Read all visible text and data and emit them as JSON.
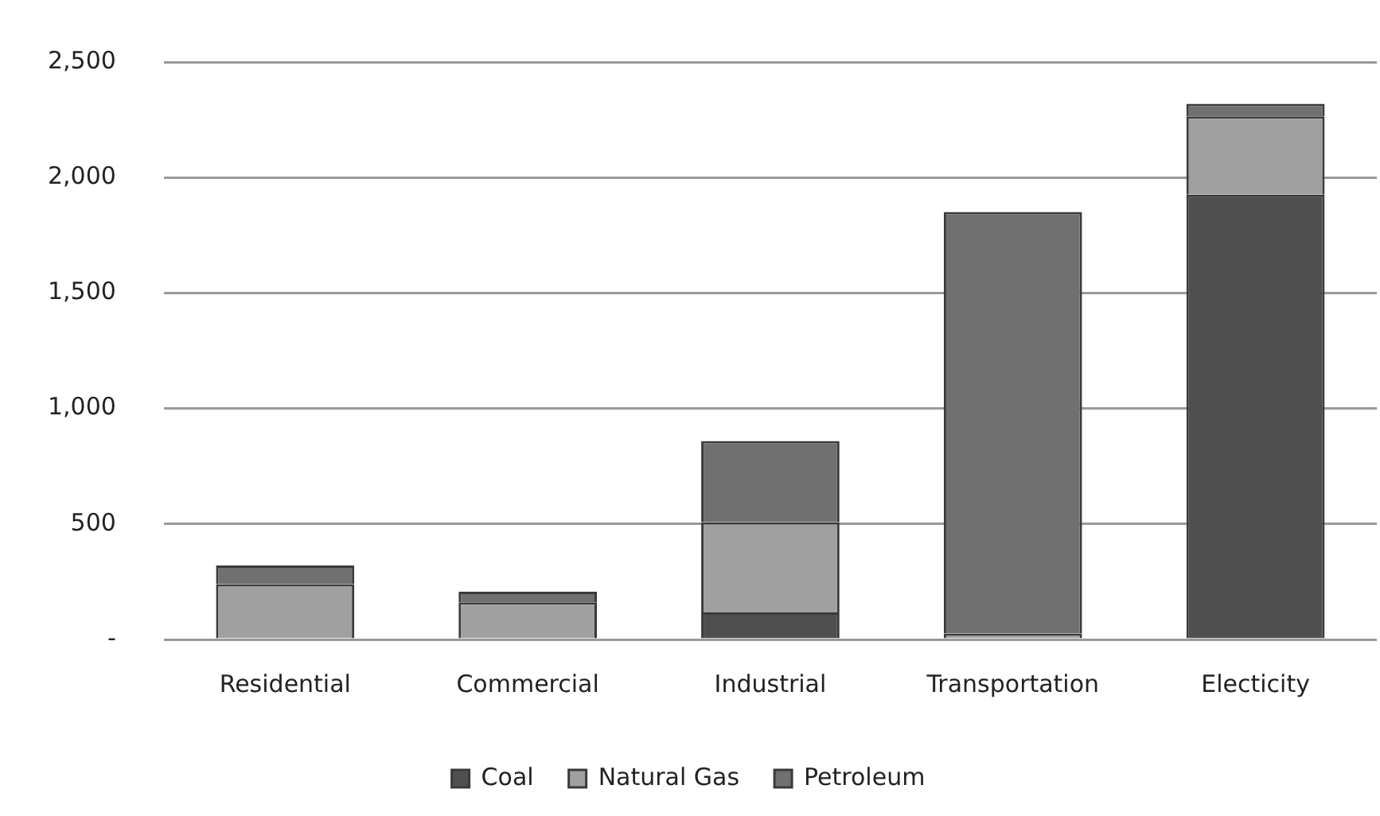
{
  "chart_data": {
    "type": "bar",
    "stacked": true,
    "categories": [
      "Residential",
      "Commercial",
      "Industrial",
      "Transportation",
      "Electicity"
    ],
    "series": [
      {
        "name": "Coal",
        "color": "#4f4f4f",
        "values": [
          0,
          0,
          117,
          0,
          1926
        ]
      },
      {
        "name": "Natural Gas",
        "color": "#a0a0a0",
        "values": [
          239,
          161,
          391,
          26,
          339
        ]
      },
      {
        "name": "Petroleum",
        "color": "#707070",
        "values": [
          81,
          46,
          351,
          1825,
          54
        ]
      }
    ],
    "ylim": [
      0,
      2500
    ],
    "yticks": [
      {
        "value": 0,
        "label": "-"
      },
      {
        "value": 500,
        "label": "500"
      },
      {
        "value": 1000,
        "label": "1,000"
      },
      {
        "value": 1500,
        "label": "1,500"
      },
      {
        "value": 2000,
        "label": "2,000"
      },
      {
        "value": 2500,
        "label": "2,500"
      }
    ],
    "grid": "y",
    "legend": "bottom"
  }
}
